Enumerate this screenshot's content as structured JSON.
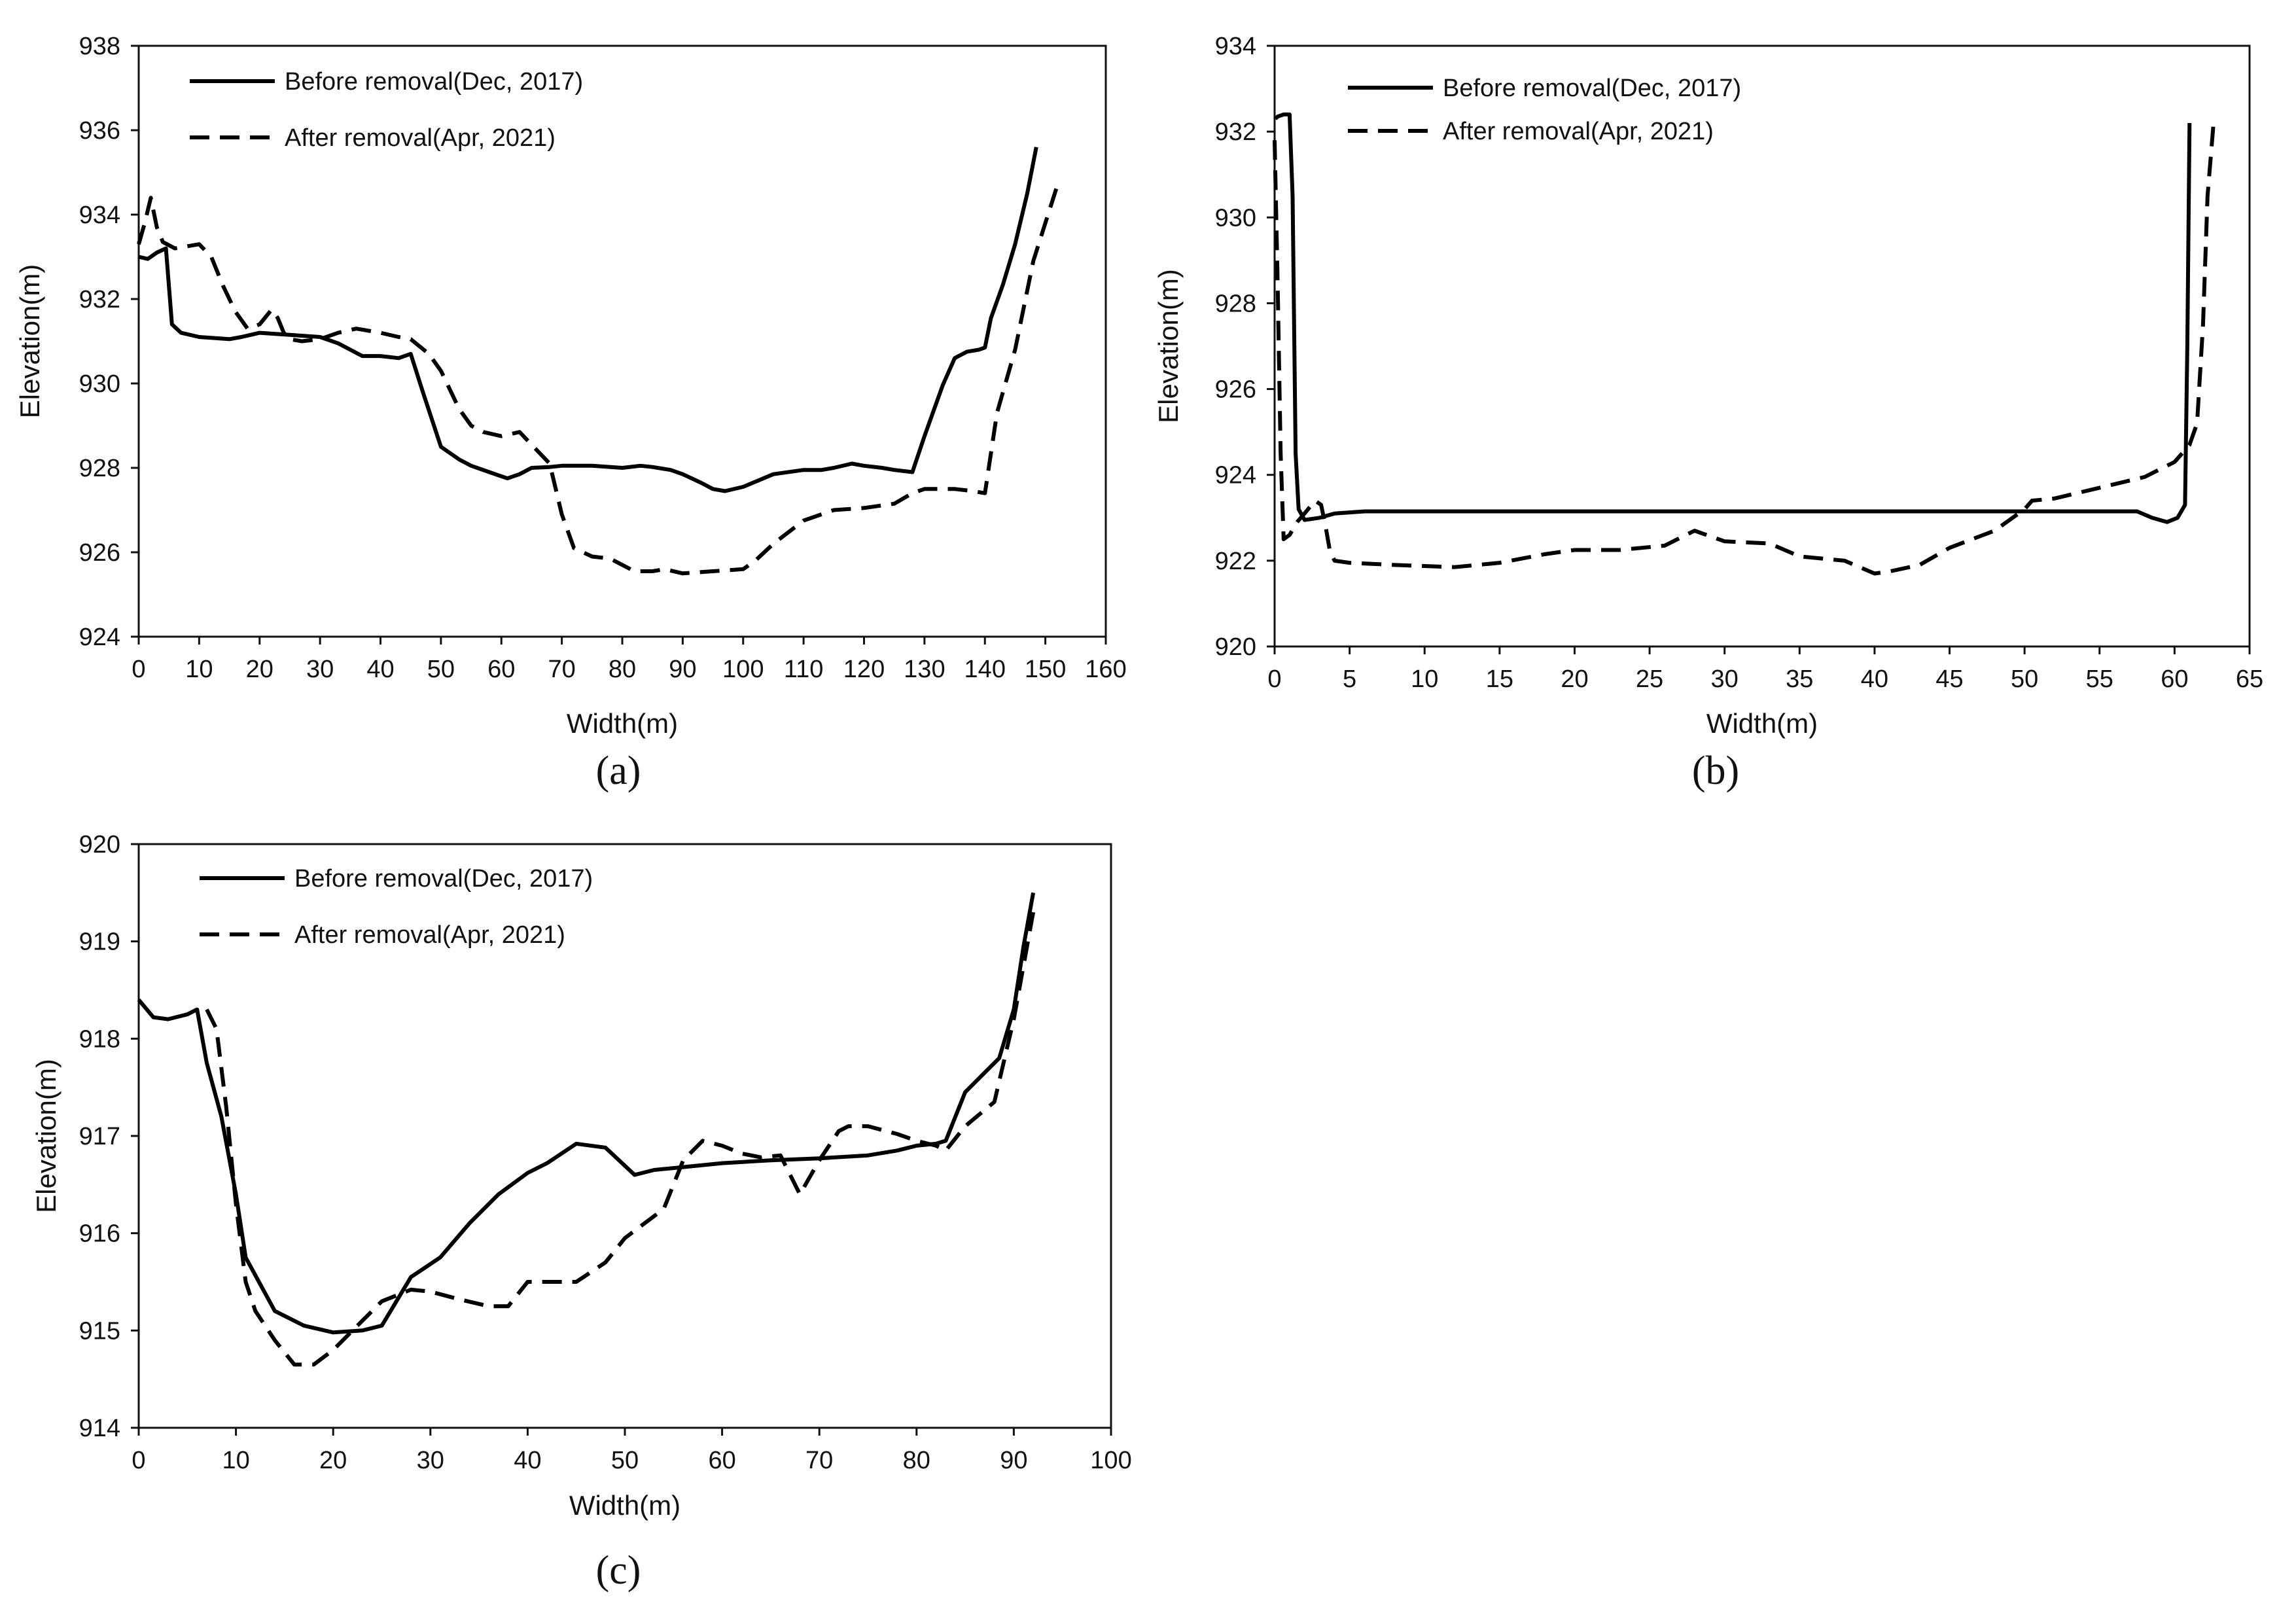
{
  "chart_data": [
    {
      "type": "line",
      "panel_label": "(a)",
      "xlabel": "Width(m)",
      "ylabel": "Elevation(m)",
      "xlim": [
        0,
        160
      ],
      "ylim": [
        924,
        938
      ],
      "xticks": [
        0,
        10,
        20,
        30,
        40,
        50,
        60,
        70,
        80,
        90,
        100,
        110,
        120,
        130,
        140,
        150,
        160
      ],
      "yticks": [
        924,
        926,
        928,
        930,
        932,
        934,
        936,
        938
      ],
      "grid": false,
      "legend": "top-left",
      "series": [
        {
          "name": "Before removal(Dec, 2017)",
          "style": "solid",
          "x": [
            0,
            1.5,
            3,
            4.5,
            5.5,
            7,
            10,
            15,
            17,
            20,
            25,
            30,
            33,
            37,
            40,
            43,
            45,
            47,
            50,
            53,
            55,
            58,
            61,
            63,
            65,
            68,
            70,
            75,
            80,
            83,
            85,
            88,
            90,
            93,
            95,
            97,
            100,
            105,
            110,
            113,
            115,
            118,
            120,
            123,
            125,
            128,
            130,
            133,
            135,
            137,
            139,
            140,
            141,
            143,
            145,
            147,
            148.5
          ],
          "y": [
            933.0,
            932.95,
            933.1,
            933.2,
            931.4,
            931.2,
            931.1,
            931.05,
            931.1,
            931.2,
            931.15,
            931.1,
            930.95,
            930.65,
            930.65,
            930.6,
            930.7,
            929.8,
            928.5,
            928.2,
            928.05,
            927.9,
            927.75,
            927.85,
            928.0,
            928.02,
            928.05,
            928.05,
            928.0,
            928.05,
            928.02,
            927.95,
            927.85,
            927.65,
            927.5,
            927.45,
            927.55,
            927.85,
            927.95,
            927.95,
            928.0,
            928.1,
            928.05,
            928.0,
            927.95,
            927.9,
            928.75,
            929.95,
            930.6,
            930.75,
            930.8,
            930.85,
            931.55,
            932.35,
            933.3,
            934.5,
            935.6
          ]
        },
        {
          "name": "After removal(Apr, 2021)",
          "style": "dashed",
          "x": [
            0,
            1,
            2,
            3,
            4,
            6,
            8,
            10,
            12,
            14,
            16,
            18,
            20,
            22,
            23,
            24,
            25,
            27,
            30,
            33,
            36,
            40,
            43,
            45,
            48,
            50,
            53,
            55,
            57,
            60,
            63,
            65,
            68,
            70,
            72,
            75,
            78,
            80,
            82,
            85,
            87,
            90,
            95,
            100,
            102,
            105,
            110,
            115,
            120,
            125,
            128,
            130,
            135,
            138,
            140,
            142,
            145,
            148,
            150,
            152
          ],
          "y": [
            933.3,
            933.8,
            934.4,
            933.7,
            933.35,
            933.2,
            933.25,
            933.3,
            933.0,
            932.3,
            931.7,
            931.3,
            931.4,
            931.75,
            931.55,
            931.2,
            931.05,
            931.0,
            931.05,
            931.2,
            931.3,
            931.2,
            931.1,
            931.05,
            930.7,
            930.3,
            929.4,
            929.0,
            928.85,
            928.75,
            928.85,
            928.55,
            928.1,
            926.9,
            926.1,
            925.9,
            925.85,
            925.7,
            925.55,
            925.55,
            925.6,
            925.5,
            925.55,
            925.6,
            925.8,
            926.2,
            926.75,
            927.0,
            927.05,
            927.15,
            927.4,
            927.5,
            927.5,
            927.45,
            927.4,
            929.3,
            930.8,
            932.9,
            933.8,
            934.7
          ]
        }
      ]
    },
    {
      "type": "line",
      "panel_label": "(b)",
      "xlabel": "Width(m)",
      "ylabel": "Elevation(m)",
      "xlim": [
        0,
        65
      ],
      "ylim": [
        920,
        934
      ],
      "xticks": [
        0,
        5,
        10,
        15,
        20,
        25,
        30,
        35,
        40,
        45,
        50,
        55,
        60,
        65
      ],
      "yticks": [
        920,
        922,
        924,
        926,
        928,
        930,
        932,
        934
      ],
      "grid": false,
      "legend": "top-left",
      "series": [
        {
          "name": "Before removal(Dec, 2017)",
          "style": "solid",
          "x": [
            0.05,
            0.2,
            0.6,
            1.0,
            1.2,
            1.4,
            1.6,
            2.0,
            3.0,
            4.0,
            6.0,
            10,
            20,
            30,
            40,
            50,
            55,
            57.5,
            58.5,
            59.5,
            60.2,
            60.7,
            60.85,
            61.0
          ],
          "y": [
            932.3,
            932.35,
            932.4,
            932.4,
            930.5,
            924.5,
            923.2,
            922.95,
            923.0,
            923.1,
            923.15,
            923.15,
            923.15,
            923.15,
            923.15,
            923.15,
            923.15,
            923.15,
            923.0,
            922.9,
            923.0,
            923.3,
            927.0,
            932.2
          ]
        },
        {
          "name": "After removal(Apr, 2021)",
          "style": "dashed",
          "x": [
            0.0,
            0.2,
            0.4,
            0.6,
            1.0,
            1.5,
            2.0,
            2.7,
            3.1,
            3.4,
            3.7,
            4.0,
            5.0,
            8,
            12,
            15,
            18,
            20,
            23,
            26,
            28,
            30,
            33,
            35,
            38,
            40,
            41,
            43,
            45,
            48,
            50,
            50.5,
            52,
            55,
            58,
            60,
            61,
            61.5,
            61.9,
            62.2,
            62.6
          ],
          "y": [
            931.8,
            928.5,
            924.5,
            922.5,
            922.6,
            922.9,
            923.1,
            923.4,
            923.3,
            922.8,
            922.2,
            922.0,
            921.95,
            921.9,
            921.85,
            921.95,
            922.15,
            922.25,
            922.25,
            922.35,
            922.7,
            922.45,
            922.4,
            922.1,
            922.0,
            921.7,
            921.75,
            921.9,
            922.3,
            922.7,
            923.2,
            923.4,
            923.45,
            923.7,
            923.95,
            924.3,
            924.7,
            925.2,
            927.5,
            930.5,
            932.2
          ]
        }
      ]
    },
    {
      "type": "line",
      "panel_label": "(c)",
      "xlabel": "Width(m)",
      "ylabel": "Elevation(m)",
      "xlim": [
        0,
        100
      ],
      "ylim": [
        914,
        920
      ],
      "xticks": [
        0,
        10,
        20,
        30,
        40,
        50,
        60,
        70,
        80,
        90,
        100
      ],
      "yticks": [
        914,
        915,
        916,
        917,
        918,
        919,
        920
      ],
      "grid": false,
      "legend": "top-left",
      "series": [
        {
          "name": "Before removal(Dec, 2017)",
          "style": "solid",
          "x": [
            0,
            1.5,
            3,
            5,
            6,
            7,
            8.5,
            10,
            11,
            14,
            17,
            20,
            23,
            25,
            28,
            31,
            34,
            37,
            40,
            42,
            45,
            48,
            51,
            53,
            56,
            60,
            65,
            70,
            75,
            78,
            80,
            82,
            83,
            85,
            87,
            88.5,
            90,
            91,
            92
          ],
          "y": [
            918.4,
            918.22,
            918.2,
            918.25,
            918.3,
            917.75,
            917.2,
            916.4,
            915.75,
            915.2,
            915.05,
            914.98,
            915.0,
            915.05,
            915.55,
            915.75,
            916.1,
            916.4,
            916.62,
            916.72,
            916.92,
            916.88,
            916.6,
            916.65,
            916.68,
            916.72,
            916.75,
            916.77,
            916.8,
            916.85,
            916.9,
            916.92,
            916.95,
            917.45,
            917.65,
            917.8,
            918.3,
            918.95,
            919.5
          ]
        },
        {
          "name": "After removal(Apr, 2021)",
          "style": "dashed",
          "x": [
            7,
            8,
            9,
            10,
            11,
            12,
            14,
            16,
            18,
            20,
            22,
            25,
            28,
            30,
            33,
            36,
            38,
            40,
            43,
            45,
            48,
            50,
            52,
            54,
            56,
            58,
            60,
            62,
            64,
            66,
            67,
            68,
            70,
            72,
            73,
            75,
            78,
            80,
            82,
            83,
            85,
            88,
            90,
            92
          ],
          "y": [
            918.3,
            918.1,
            917.3,
            916.3,
            915.5,
            915.2,
            914.9,
            914.65,
            914.65,
            914.8,
            915.0,
            915.3,
            915.42,
            915.4,
            915.32,
            915.25,
            915.25,
            915.5,
            915.5,
            915.5,
            915.7,
            915.95,
            916.1,
            916.25,
            916.75,
            916.95,
            916.9,
            916.82,
            916.78,
            916.8,
            916.6,
            916.4,
            916.75,
            917.05,
            917.1,
            917.1,
            917.02,
            916.95,
            916.9,
            916.85,
            917.1,
            917.35,
            918.2,
            919.3
          ]
        }
      ]
    }
  ],
  "colors": {
    "line": "#000000",
    "axis": "#111111",
    "background": "#ffffff"
  }
}
